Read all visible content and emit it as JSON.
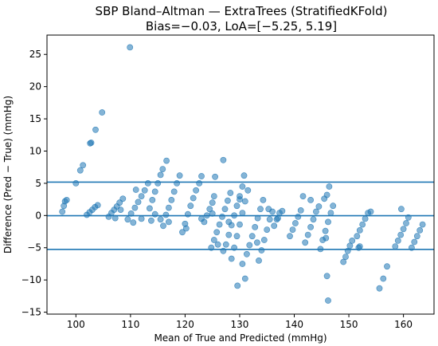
{
  "chart_data": {
    "type": "scatter",
    "title": "SBP Bland–Altman — ExtraTrees (StratifiedKFold)",
    "subtitle": "Bias=−0.03, LoA=[−5.25, 5.19]",
    "xlabel": "Mean of True and Predicted (mmHg)",
    "ylabel": "Difference (Pred − True) (mmHg)",
    "xlim": [
      94.7,
      165.6
    ],
    "ylim": [
      -15.3,
      28.0
    ],
    "xticks": [
      100,
      110,
      120,
      130,
      140,
      150,
      160
    ],
    "yticks": [
      -15,
      -10,
      -5,
      0,
      5,
      10,
      15,
      20,
      25
    ],
    "grid": false,
    "point_color": "#1f77b4",
    "point_alpha": 0.55,
    "line_color": "#1f77b4",
    "hlines": [
      {
        "name": "Bias",
        "y": -0.03
      },
      {
        "name": "Upper LoA",
        "y": 5.19
      },
      {
        "name": "Lower LoA",
        "y": -5.25
      }
    ],
    "series": [
      {
        "points": [
          [
            97.5,
            0.6
          ],
          [
            97.8,
            1.5
          ],
          [
            98.0,
            2.2
          ],
          [
            98.3,
            2.4
          ],
          [
            100.0,
            5.0
          ],
          [
            100.8,
            7.0
          ],
          [
            101.3,
            7.8
          ],
          [
            102.6,
            11.2
          ],
          [
            102.8,
            11.3
          ],
          [
            103.6,
            13.3
          ],
          [
            104.8,
            16.0
          ],
          [
            109.9,
            26.1
          ],
          [
            102.0,
            0.1
          ],
          [
            102.5,
            0.5
          ],
          [
            103.0,
            0.9
          ],
          [
            103.5,
            1.3
          ],
          [
            104.0,
            1.6
          ],
          [
            106.0,
            -0.2
          ],
          [
            106.5,
            0.4
          ],
          [
            107.0,
            0.9
          ],
          [
            107.5,
            1.4
          ],
          [
            108.0,
            2.0
          ],
          [
            108.6,
            2.6
          ],
          [
            107.2,
            -0.4
          ],
          [
            108.2,
            0.9
          ],
          [
            109.5,
            -0.6
          ],
          [
            110.1,
            0.3
          ],
          [
            110.8,
            1.2
          ],
          [
            111.4,
            2.1
          ],
          [
            112.0,
            3.0
          ],
          [
            112.6,
            3.9
          ],
          [
            113.2,
            5.0
          ],
          [
            110.5,
            -1.1
          ],
          [
            111.0,
            4.0
          ],
          [
            112.0,
            -0.5
          ],
          [
            113.5,
            1.1
          ],
          [
            114.0,
            2.4
          ],
          [
            114.5,
            3.7
          ],
          [
            115.0,
            5.0
          ],
          [
            115.5,
            6.3
          ],
          [
            115.9,
            7.2
          ],
          [
            116.6,
            8.5
          ],
          [
            113.8,
            -0.8
          ],
          [
            114.5,
            0.2
          ],
          [
            115.5,
            -0.6
          ],
          [
            116.0,
            -1.6
          ],
          [
            116.5,
            0.1
          ],
          [
            117.0,
            1.2
          ],
          [
            117.5,
            2.4
          ],
          [
            118.0,
            3.7
          ],
          [
            118.5,
            5.0
          ],
          [
            119.0,
            6.2
          ],
          [
            117.0,
            -1.0
          ],
          [
            119.5,
            -2.6
          ],
          [
            120.0,
            -1.3
          ],
          [
            120.5,
            0.2
          ],
          [
            121.0,
            1.5
          ],
          [
            121.5,
            2.7
          ],
          [
            122.0,
            3.9
          ],
          [
            122.6,
            5.0
          ],
          [
            123.0,
            6.1
          ],
          [
            120.2,
            -2.0
          ],
          [
            123.5,
            -1.0
          ],
          [
            124.0,
            0.0
          ],
          [
            124.5,
            1.0
          ],
          [
            125.0,
            2.0
          ],
          [
            123.0,
            -0.5
          ],
          [
            125.0,
            0.3
          ],
          [
            124.8,
            -5.0
          ],
          [
            125.3,
            -3.8
          ],
          [
            125.8,
            -2.6
          ],
          [
            126.3,
            -1.4
          ],
          [
            126.8,
            -0.2
          ],
          [
            127.3,
            1.0
          ],
          [
            127.8,
            2.3
          ],
          [
            128.3,
            3.5
          ],
          [
            126.0,
            -4.5
          ],
          [
            127.0,
            8.6
          ],
          [
            125.3,
            3.0
          ],
          [
            125.5,
            6.0
          ],
          [
            127.0,
            -5.5
          ],
          [
            127.5,
            -4.5
          ],
          [
            128.0,
            -3.0
          ],
          [
            128.5,
            -1.5
          ],
          [
            129.0,
            0.0
          ],
          [
            129.5,
            1.5
          ],
          [
            130.0,
            3.0
          ],
          [
            130.5,
            4.5
          ],
          [
            130.8,
            6.2
          ],
          [
            128.0,
            -1.0
          ],
          [
            128.5,
            -6.7
          ],
          [
            129.0,
            -5.0
          ],
          [
            129.5,
            -3.2
          ],
          [
            130.0,
            -1.4
          ],
          [
            130.5,
            0.4
          ],
          [
            131.0,
            2.2
          ],
          [
            131.5,
            3.9
          ],
          [
            129.6,
            -10.9
          ],
          [
            131.0,
            -9.8
          ],
          [
            130.5,
            -7.5
          ],
          [
            130.0,
            2.5
          ],
          [
            131.3,
            -6.0
          ],
          [
            131.8,
            -4.6
          ],
          [
            132.3,
            -3.2
          ],
          [
            132.8,
            -1.8
          ],
          [
            133.3,
            -0.4
          ],
          [
            133.8,
            1.0
          ],
          [
            134.3,
            2.4
          ],
          [
            133.2,
            -4.2
          ],
          [
            133.5,
            -7.0
          ],
          [
            134.0,
            -5.4
          ],
          [
            134.5,
            -3.8
          ],
          [
            135.0,
            -2.2
          ],
          [
            135.5,
            -0.6
          ],
          [
            136.0,
            0.6
          ],
          [
            135.3,
            1.0
          ],
          [
            136.3,
            -1.6
          ],
          [
            136.8,
            -0.6
          ],
          [
            137.3,
            0.4
          ],
          [
            137.8,
            0.7
          ],
          [
            137.0,
            -0.4
          ],
          [
            139.2,
            -3.2
          ],
          [
            139.7,
            -2.2
          ],
          [
            140.2,
            -1.2
          ],
          [
            140.7,
            -0.2
          ],
          [
            141.2,
            0.8
          ],
          [
            141.6,
            3.0
          ],
          [
            142.0,
            -4.2
          ],
          [
            142.5,
            -3.0
          ],
          [
            143.0,
            -1.8
          ],
          [
            143.5,
            -0.6
          ],
          [
            144.0,
            0.6
          ],
          [
            144.5,
            1.4
          ],
          [
            143.0,
            2.4
          ],
          [
            144.8,
            -5.2
          ],
          [
            145.2,
            -3.8
          ],
          [
            145.7,
            -2.4
          ],
          [
            146.2,
            -1.0
          ],
          [
            146.7,
            0.4
          ],
          [
            147.1,
            1.5
          ],
          [
            145.5,
            2.6
          ],
          [
            146.0,
            3.2
          ],
          [
            146.4,
            4.5
          ],
          [
            145.8,
            -3.5
          ],
          [
            146.2,
            -13.2
          ],
          [
            146.0,
            -9.4
          ],
          [
            149.0,
            -7.2
          ],
          [
            149.4,
            -6.4
          ],
          [
            149.8,
            -5.5
          ],
          [
            150.2,
            -4.7
          ],
          [
            150.6,
            -3.9
          ],
          [
            151.5,
            -3.2
          ],
          [
            152.0,
            -2.3
          ],
          [
            152.5,
            -1.4
          ],
          [
            153.0,
            -0.5
          ],
          [
            153.5,
            0.4
          ],
          [
            154.0,
            0.6
          ],
          [
            152.0,
            -4.8
          ],
          [
            151.8,
            -5.0
          ],
          [
            155.6,
            -11.3
          ],
          [
            156.3,
            -9.8
          ],
          [
            157.0,
            -7.9
          ],
          [
            158.5,
            -4.8
          ],
          [
            159.0,
            -3.9
          ],
          [
            159.5,
            -3.0
          ],
          [
            160.0,
            -2.1
          ],
          [
            160.5,
            -1.2
          ],
          [
            160.9,
            -0.3
          ],
          [
            159.6,
            1.0
          ],
          [
            161.5,
            -5.0
          ],
          [
            162.0,
            -4.1
          ],
          [
            162.5,
            -3.2
          ],
          [
            163.0,
            -2.3
          ],
          [
            163.5,
            -1.4
          ]
        ]
      }
    ]
  }
}
